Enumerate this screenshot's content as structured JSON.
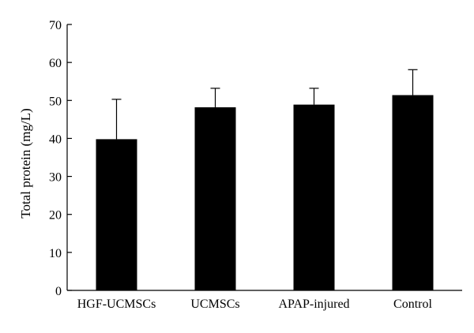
{
  "chart_data": {
    "type": "bar",
    "title": "",
    "xlabel": "",
    "ylabel": "Total protein (mg/L)",
    "categories": [
      "HGF-UCMSCs",
      "UCMSCs",
      "APAP-injured",
      "Control"
    ],
    "values": [
      39.8,
      48.2,
      48.9,
      51.4
    ],
    "error_upper": [
      50.3,
      53.2,
      53.2,
      58.1
    ],
    "ylim": [
      0,
      70
    ],
    "yticks": [
      0,
      10,
      20,
      30,
      40,
      50,
      60,
      70
    ],
    "grid": false,
    "legend": "none",
    "bar_color": "#000000"
  }
}
